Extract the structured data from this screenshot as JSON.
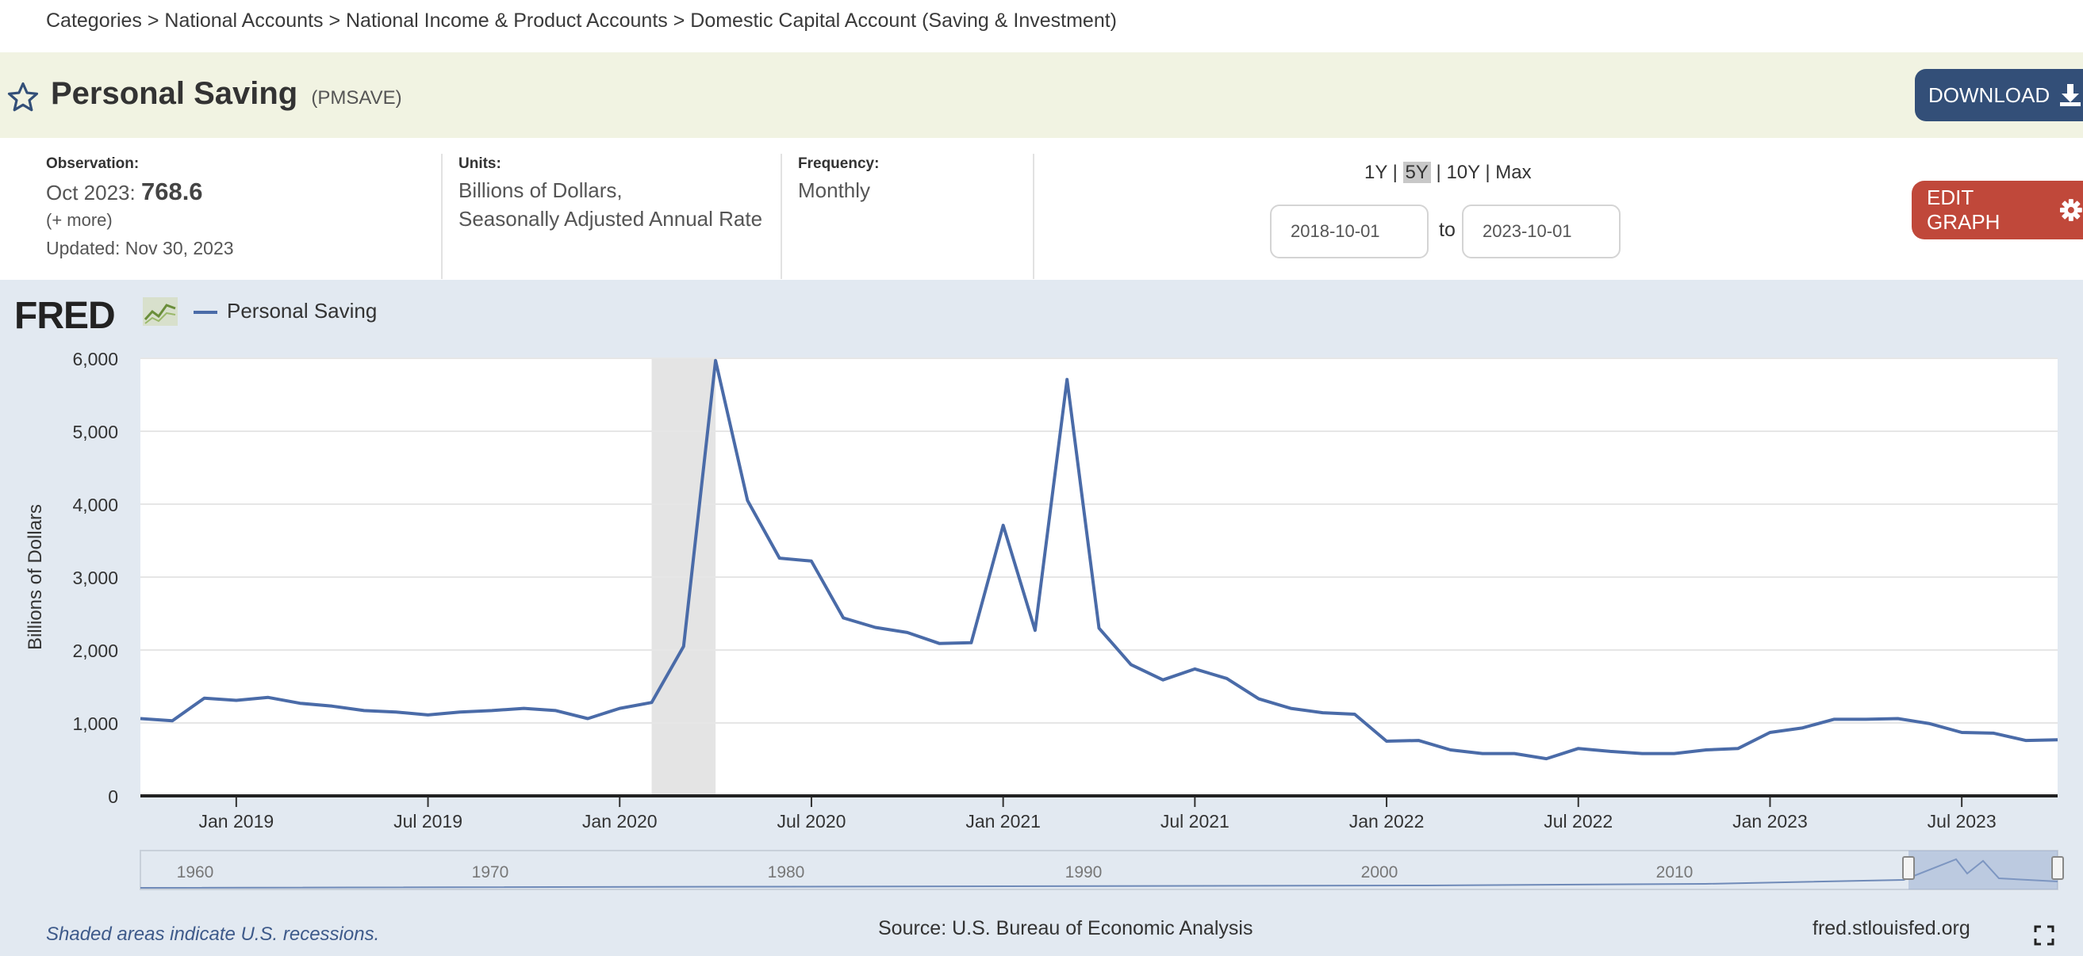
{
  "breadcrumb": "Categories > National Accounts > National Income & Product Accounts > Domestic Capital Account (Saving & Investment)",
  "series": {
    "title": "Personal Saving",
    "id": "(PMSAVE)"
  },
  "download_label": "DOWNLOAD",
  "observation": {
    "label": "Observation:",
    "date": "Oct 2023:",
    "value": "768.6",
    "more": "(+ more)",
    "updated": "Updated: Nov 30, 2023"
  },
  "units": {
    "label": "Units:",
    "line1": "Billions of Dollars,",
    "line2": "Seasonally Adjusted Annual Rate"
  },
  "frequency": {
    "label": "Frequency:",
    "value": "Monthly"
  },
  "range": {
    "one_year": "1Y",
    "five_year": "5Y",
    "ten_year": "10Y",
    "max": "Max",
    "separator": "|",
    "start": "2018-10-01",
    "end": "2023-10-01",
    "to": "to"
  },
  "edit_graph_label": "EDIT GRAPH",
  "logo": "FRED",
  "legend_label": "Personal Saving",
  "recession_note": "Shaded areas indicate U.S. recessions.",
  "source": "Source: U.S. Bureau of Economic Analysis",
  "fred_url": "fred.stlouisfed.org",
  "colors": {
    "series": "#4a6ba8",
    "download": "#334f78",
    "edit_graph": "#c0483a",
    "title_band": "#f1f3e2",
    "graph_background": "#e2e9f1",
    "recession": "#e4e4e4"
  },
  "chart_data": {
    "type": "line",
    "title": "",
    "xlabel": "",
    "ylabel": "Billions of Dollars",
    "ylim": [
      0,
      6000
    ],
    "y_ticks": [
      0,
      1000,
      2000,
      3000,
      4000,
      5000,
      6000
    ],
    "y_tick_labels": [
      "0",
      "1,000",
      "2,000",
      "3,000",
      "4,000",
      "5,000",
      "6,000"
    ],
    "x_ticks": [
      "2019-01",
      "2019-07",
      "2020-01",
      "2020-07",
      "2021-01",
      "2021-07",
      "2022-01",
      "2022-07",
      "2023-01",
      "2023-07"
    ],
    "x_tick_labels": [
      "Jan 2019",
      "Jul 2019",
      "Jan 2020",
      "Jul 2020",
      "Jan 2021",
      "Jul 2021",
      "Jan 2022",
      "Jul 2022",
      "Jan 2023",
      "Jul 2023"
    ],
    "recessions": [
      {
        "start": "2020-02",
        "end": "2020-04"
      }
    ],
    "grid": true,
    "legend": "top-left",
    "series": [
      {
        "name": "Personal Saving",
        "x": [
          "2018-10",
          "2018-11",
          "2018-12",
          "2019-01",
          "2019-02",
          "2019-03",
          "2019-04",
          "2019-05",
          "2019-06",
          "2019-07",
          "2019-08",
          "2019-09",
          "2019-10",
          "2019-11",
          "2019-12",
          "2020-01",
          "2020-02",
          "2020-03",
          "2020-04",
          "2020-05",
          "2020-06",
          "2020-07",
          "2020-08",
          "2020-09",
          "2020-10",
          "2020-11",
          "2020-12",
          "2021-01",
          "2021-02",
          "2021-03",
          "2021-04",
          "2021-05",
          "2021-06",
          "2021-07",
          "2021-08",
          "2021-09",
          "2021-10",
          "2021-11",
          "2021-12",
          "2022-01",
          "2022-02",
          "2022-03",
          "2022-04",
          "2022-05",
          "2022-06",
          "2022-07",
          "2022-08",
          "2022-09",
          "2022-10",
          "2022-11",
          "2022-12",
          "2023-01",
          "2023-02",
          "2023-03",
          "2023-04",
          "2023-05",
          "2023-06",
          "2023-07",
          "2023-08",
          "2023-09",
          "2023-10"
        ],
        "values": [
          1060,
          1030,
          1340,
          1310,
          1350,
          1270,
          1230,
          1170,
          1150,
          1110,
          1150,
          1170,
          1200,
          1170,
          1060,
          1200,
          1280,
          2050,
          5970,
          4050,
          3260,
          3220,
          2440,
          2310,
          2240,
          2090,
          2100,
          3710,
          2270,
          5710,
          2300,
          1800,
          1590,
          1740,
          1610,
          1330,
          1200,
          1140,
          1120,
          750,
          760,
          630,
          580,
          580,
          510,
          650,
          610,
          580,
          580,
          630,
          650,
          870,
          930,
          1050,
          1050,
          1060,
          990,
          870,
          860,
          760,
          769
        ]
      }
    ],
    "navigator_labels": [
      "1960",
      "1970",
      "1980",
      "1990",
      "2000",
      "2010"
    ]
  }
}
